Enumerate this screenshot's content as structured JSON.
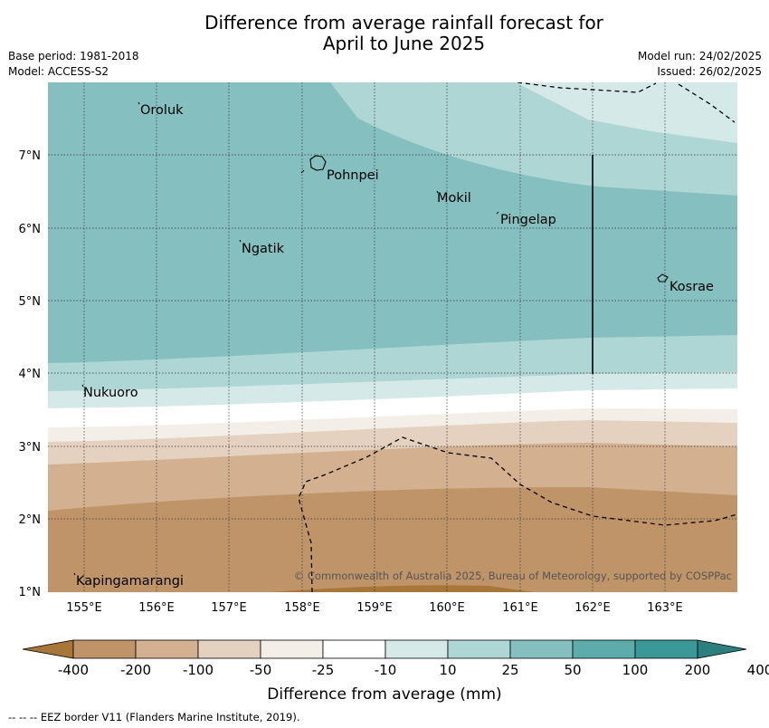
{
  "header": {
    "title_line1": "Difference from average rainfall forecast for",
    "title_line2": "April to June 2025",
    "base_period": "Base period: 1981-2018",
    "model": "Model: ACCESS-S2",
    "model_run": "Model run: 24/02/2025",
    "issued": "Issued: 26/02/2025"
  },
  "map": {
    "lon_range": [
      154.5,
      164.0
    ],
    "lat_range": [
      1.0,
      8.0
    ],
    "x_ticks": [
      "155°E",
      "156°E",
      "157°E",
      "158°E",
      "159°E",
      "160°E",
      "161°E",
      "162°E",
      "163°E"
    ],
    "y_ticks": [
      "7°N",
      "6°N",
      "5°N",
      "4°N",
      "3°N",
      "2°N",
      "1°N"
    ],
    "places": [
      "Oroluk",
      "Pohnpei",
      "Mokil",
      "Pingelap",
      "Ngatik",
      "Kosrae",
      "Nukuoro",
      "Kapingamarangi"
    ],
    "copyright": "© Commonwealth of Australia 2025, Bureau of Meteorology, supported by COSPPac"
  },
  "legend": {
    "tick_labels": [
      "-400",
      "-200",
      "-100",
      "-50",
      "-25",
      "-10",
      "10",
      "25",
      "50",
      "100",
      "200",
      "400"
    ],
    "colors": [
      "#a87638",
      "#c09469",
      "#d3b190",
      "#e4d1bf",
      "#f3eee7",
      "#ffffff",
      "#d5e9e8",
      "#add6d5",
      "#85bfbf",
      "#5eabab",
      "#3a9898",
      "#2c7f7f"
    ],
    "label": "Difference from average (mm)"
  },
  "footnote": "--  --  -- EEZ border V11 (Flanders Marine Institute, 2019)."
}
